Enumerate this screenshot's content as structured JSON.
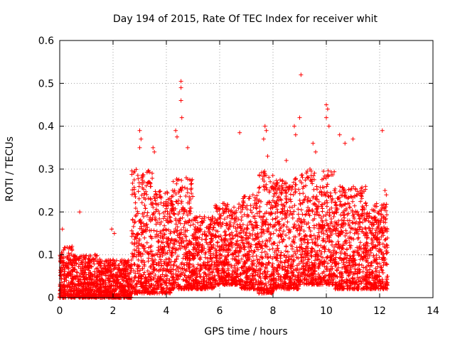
{
  "chart_data": {
    "type": "scatter",
    "title": "Day 194 of 2015, Rate Of TEC Index for receiver whit",
    "xlabel": "GPS time / hours",
    "ylabel": "ROTI / TECUs",
    "xlim": [
      0,
      14
    ],
    "ylim": [
      0,
      0.6
    ],
    "xticks": [
      "0",
      "2",
      "4",
      "6",
      "8",
      "10",
      "12",
      "14"
    ],
    "yticks": [
      "0",
      "0.1",
      "0.2",
      "0.3",
      "0.4",
      "0.5",
      "0.6"
    ],
    "grid": true,
    "marker": "plus",
    "color": "#ff0000",
    "x_range_of_data": [
      0,
      12.3
    ],
    "bands": [
      {
        "x0": 0.0,
        "x1": 0.5,
        "lo": 0.0,
        "hi": 0.12
      },
      {
        "x0": 0.5,
        "x1": 1.5,
        "lo": 0.0,
        "hi": 0.1
      },
      {
        "x0": 1.5,
        "x1": 2.7,
        "lo": 0.0,
        "hi": 0.09
      },
      {
        "x0": 2.7,
        "x1": 3.5,
        "lo": 0.01,
        "hi": 0.3
      },
      {
        "x0": 3.5,
        "x1": 4.2,
        "lo": 0.01,
        "hi": 0.25
      },
      {
        "x0": 4.2,
        "x1": 5.0,
        "lo": 0.02,
        "hi": 0.28
      },
      {
        "x0": 5.0,
        "x1": 5.8,
        "lo": 0.02,
        "hi": 0.19
      },
      {
        "x0": 5.8,
        "x1": 6.8,
        "lo": 0.03,
        "hi": 0.22
      },
      {
        "x0": 6.8,
        "x1": 7.4,
        "lo": 0.02,
        "hi": 0.24
      },
      {
        "x0": 7.4,
        "x1": 8.0,
        "lo": 0.01,
        "hi": 0.3
      },
      {
        "x0": 8.0,
        "x1": 9.0,
        "lo": 0.02,
        "hi": 0.28
      },
      {
        "x0": 9.0,
        "x1": 10.3,
        "lo": 0.03,
        "hi": 0.3
      },
      {
        "x0": 10.3,
        "x1": 11.5,
        "lo": 0.02,
        "hi": 0.26
      },
      {
        "x0": 11.5,
        "x1": 12.3,
        "lo": 0.02,
        "hi": 0.22
      }
    ],
    "outliers": [
      [
        4.55,
        0.505
      ],
      [
        4.55,
        0.49
      ],
      [
        4.55,
        0.46
      ],
      [
        4.58,
        0.42
      ],
      [
        4.4,
        0.375
      ],
      [
        4.35,
        0.39
      ],
      [
        3.0,
        0.39
      ],
      [
        3.05,
        0.37
      ],
      [
        3.0,
        0.35
      ],
      [
        3.5,
        0.35
      ],
      [
        3.55,
        0.34
      ],
      [
        9.05,
        0.52
      ],
      [
        10.0,
        0.45
      ],
      [
        10.05,
        0.44
      ],
      [
        10.0,
        0.42
      ],
      [
        10.1,
        0.4
      ],
      [
        9.0,
        0.42
      ],
      [
        8.8,
        0.4
      ],
      [
        8.85,
        0.38
      ],
      [
        7.7,
        0.4
      ],
      [
        7.75,
        0.39
      ],
      [
        7.65,
        0.37
      ],
      [
        6.75,
        0.385
      ],
      [
        12.1,
        0.39
      ],
      [
        11.0,
        0.37
      ],
      [
        10.5,
        0.38
      ],
      [
        10.7,
        0.36
      ],
      [
        9.5,
        0.36
      ],
      [
        9.6,
        0.34
      ],
      [
        7.8,
        0.33
      ],
      [
        8.5,
        0.32
      ],
      [
        4.8,
        0.35
      ],
      [
        0.75,
        0.2
      ],
      [
        0.1,
        0.16
      ],
      [
        1.95,
        0.16
      ],
      [
        2.05,
        0.15
      ],
      [
        12.2,
        0.25
      ],
      [
        12.25,
        0.24
      ]
    ]
  }
}
